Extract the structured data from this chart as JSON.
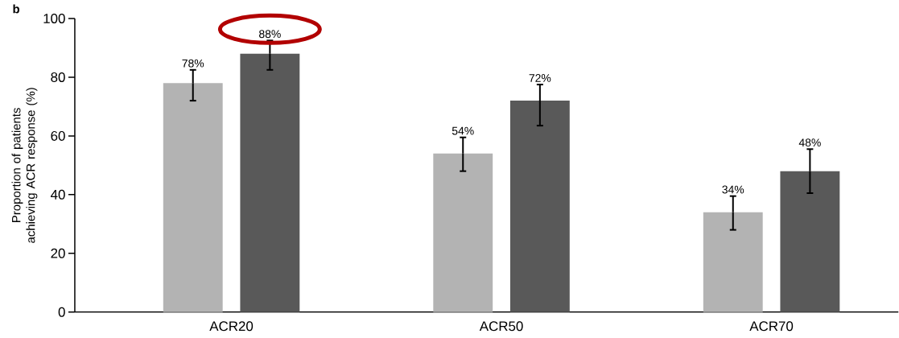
{
  "chart_data": {
    "type": "bar",
    "ylabel": "Proportion of patients achieving ACR response (%)",
    "annotations": [
      "b"
    ],
    "categories": [
      "ACR20",
      "ACR50",
      "ACR70"
    ],
    "series": [
      {
        "color": "#b3b3b3",
        "values": [
          78,
          54,
          34
        ],
        "errors": [
          [
            72,
            82.5
          ],
          [
            48,
            59.5
          ],
          [
            28,
            39.5
          ]
        ],
        "value_labels": [
          "78%",
          "54%",
          "34%"
        ]
      },
      {
        "color": "#595959",
        "values": [
          88,
          72,
          48
        ],
        "errors": [
          [
            82.5,
            92.5
          ],
          [
            63.5,
            77.5
          ],
          [
            40.5,
            55.5
          ]
        ],
        "value_labels": [
          "88%",
          "72%",
          "48%"
        ]
      }
    ],
    "ylim": [
      0,
      100
    ],
    "yticks": [
      0,
      20,
      40,
      60,
      80,
      100
    ],
    "grid": false
  }
}
